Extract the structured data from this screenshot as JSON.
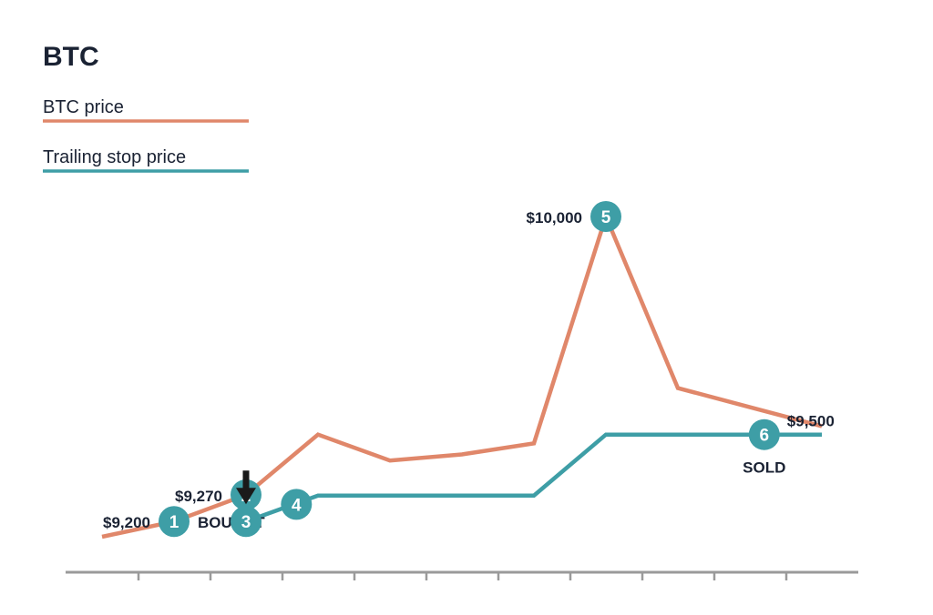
{
  "chart_data": {
    "type": "line",
    "title": "BTC",
    "xlabel": "",
    "ylabel": "",
    "colors": {
      "price": "#e0876a",
      "stop": "#3e9ea6",
      "marker": "#3e9ea6",
      "axis": "#9a9a9a",
      "arrow": "#1a1a1a"
    },
    "series": [
      {
        "name": "BTC price",
        "x": [
          0,
          1,
          2,
          3,
          4,
          5,
          6,
          7,
          8,
          9,
          10
        ],
        "values": [
          9160,
          9200,
          9270,
          9428,
          9360,
          9376,
          9405,
          10000,
          9550,
          9500,
          9450
        ]
      },
      {
        "name": "Trailing stop price",
        "x": [
          2,
          3,
          4,
          5,
          6,
          7,
          8,
          9,
          10
        ],
        "values": [
          9200,
          9268,
          9268,
          9268,
          9268,
          9428,
          9428,
          9428,
          9428
        ]
      }
    ],
    "markers": [
      {
        "id": "1",
        "series": "BTC price",
        "x": 1,
        "value": 9200,
        "label_left": "$9,200",
        "label_right": "BOUGHT"
      },
      {
        "id": "2",
        "series": "BTC price",
        "x": 2,
        "value": 9270,
        "label_left": "$9,270"
      },
      {
        "id": "3",
        "series": "Trailing stop price",
        "x": 2,
        "value": 9200,
        "arrow": "down"
      },
      {
        "id": "4",
        "series": "Trailing stop price",
        "x": 2.7,
        "value": 9245
      },
      {
        "id": "5",
        "series": "BTC price",
        "x": 7,
        "value": 10000,
        "label_left": "$10,000"
      },
      {
        "id": "6",
        "series": "Trailing stop price",
        "x": 9.2,
        "value": 9428,
        "label_top_right": "$9,500",
        "label_below": "SOLD"
      }
    ],
    "xlim": [
      -0.5,
      10.5
    ],
    "ylim": [
      9100,
      10050
    ],
    "grid": false,
    "legend": "top-left"
  }
}
